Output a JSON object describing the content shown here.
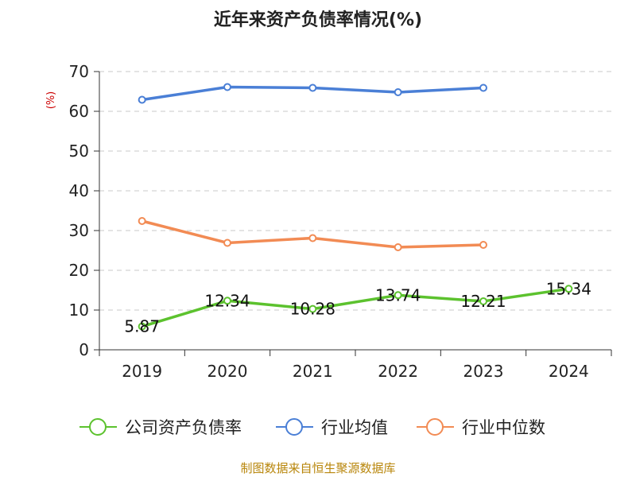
{
  "chart_data": {
    "type": "line",
    "title": "近年来资产负债率情况(%)",
    "ylabel": "(%)",
    "xlabel": "",
    "categories": [
      "2019",
      "2020",
      "2021",
      "2022",
      "2023",
      "2024"
    ],
    "ylim": [
      0,
      70
    ],
    "yticks": [
      0,
      10,
      20,
      30,
      40,
      50,
      60,
      70
    ],
    "grid": "horizontal dashed",
    "legend_position": "bottom",
    "series": [
      {
        "name": "公司资产负债率",
        "color": "#5cc22e",
        "values": [
          5.87,
          12.34,
          10.28,
          13.74,
          12.21,
          15.34
        ],
        "labels": [
          "5.87",
          "12.34",
          "10.28",
          "13.74",
          "12.21",
          "15.34"
        ]
      },
      {
        "name": "行业均值",
        "color": "#4a7fd6",
        "values": [
          62.9,
          66.1,
          65.9,
          64.8,
          65.9,
          null
        ]
      },
      {
        "name": "行业中位数",
        "color": "#f28b54",
        "values": [
          32.4,
          26.9,
          28.1,
          25.8,
          26.4,
          null
        ]
      }
    ],
    "source": "制图数据来自恒生聚源数据库"
  }
}
